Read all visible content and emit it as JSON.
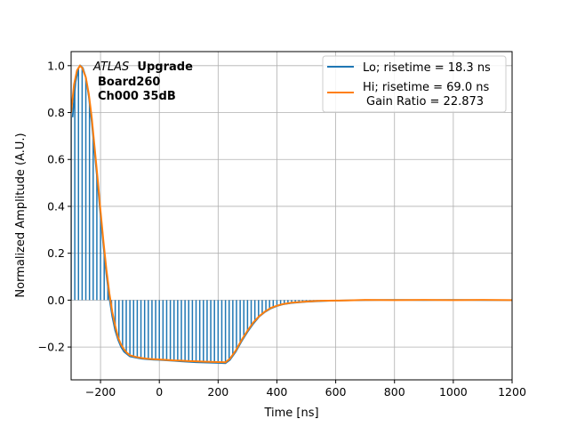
{
  "chart_data": {
    "type": "line",
    "title": "",
    "xlabel": "Time [ns]",
    "ylabel": "Normalized Amplitude (A.U.)",
    "xlim": [
      -300,
      1200
    ],
    "ylim": [
      -0.34,
      1.06
    ],
    "grid": true,
    "xticks": [
      -200,
      0,
      200,
      400,
      600,
      800,
      1000,
      1200
    ],
    "xtick_labels": [
      "−200",
      "0",
      "200",
      "400",
      "600",
      "800",
      "1000",
      "1200"
    ],
    "yticks": [
      -0.2,
      0.0,
      0.2,
      0.4,
      0.6,
      0.8,
      1.0
    ],
    "ytick_labels": [
      "−0.2",
      "0.0",
      "0.2",
      "0.4",
      "0.6",
      "0.8",
      "1.0"
    ],
    "annotation": {
      "experiment": "ATLAS",
      "label": "Upgrade",
      "board": "Board260",
      "channel": "Ch000 35dB"
    },
    "legend_position": "top-right",
    "series": [
      {
        "name": "Lo; risetime = 18.3 ns",
        "color": "#1f77b4",
        "style": "stems+line",
        "sample_period_ns": 12.5,
        "x": [
          -295,
          -285,
          -275,
          -268,
          -260,
          -250,
          -240,
          -230,
          -220,
          -210,
          -200,
          -190,
          -180,
          -170,
          -160,
          -150,
          -140,
          -130,
          -120,
          -110,
          -100,
          -80,
          -60,
          -40,
          -20,
          0,
          25,
          50,
          75,
          100,
          125,
          150,
          175,
          200,
          225,
          240,
          260,
          280,
          300,
          320,
          340,
          360,
          380,
          400,
          420,
          450,
          500,
          550,
          600,
          650,
          700,
          800,
          900,
          1000,
          1100,
          1200
        ],
        "y": [
          0.78,
          0.93,
          0.99,
          1.0,
          0.99,
          0.95,
          0.87,
          0.76,
          0.63,
          0.5,
          0.36,
          0.23,
          0.11,
          0.01,
          -0.07,
          -0.13,
          -0.17,
          -0.2,
          -0.22,
          -0.23,
          -0.24,
          -0.245,
          -0.25,
          -0.252,
          -0.254,
          -0.255,
          -0.257,
          -0.259,
          -0.261,
          -0.263,
          -0.265,
          -0.266,
          -0.267,
          -0.268,
          -0.269,
          -0.255,
          -0.22,
          -0.175,
          -0.135,
          -0.1,
          -0.07,
          -0.05,
          -0.035,
          -0.025,
          -0.018,
          -0.012,
          -0.007,
          -0.004,
          -0.002,
          -0.001,
          0.0,
          0.001,
          0.0,
          0.001,
          0.0,
          0.0
        ]
      },
      {
        "name": "Hi; risetime = 69.0 ns",
        "name_line2": "Gain Ratio = 22.873",
        "color": "#ff7f0e",
        "style": "line",
        "x": [
          -300,
          -290,
          -280,
          -270,
          -262,
          -250,
          -240,
          -230,
          -220,
          -210,
          -200,
          -190,
          -180,
          -170,
          -160,
          -150,
          -140,
          -130,
          -120,
          -110,
          -100,
          -80,
          -60,
          -40,
          -20,
          0,
          25,
          50,
          75,
          100,
          125,
          150,
          175,
          200,
          225,
          240,
          260,
          280,
          300,
          320,
          340,
          360,
          380,
          400,
          420,
          450,
          500,
          550,
          600,
          650,
          700,
          800,
          900,
          1000,
          1100,
          1200
        ],
        "y": [
          0.8,
          0.92,
          0.98,
          1.0,
          0.99,
          0.95,
          0.88,
          0.78,
          0.65,
          0.52,
          0.38,
          0.25,
          0.13,
          0.03,
          -0.05,
          -0.11,
          -0.16,
          -0.19,
          -0.21,
          -0.225,
          -0.235,
          -0.242,
          -0.247,
          -0.25,
          -0.252,
          -0.253,
          -0.255,
          -0.257,
          -0.258,
          -0.26,
          -0.261,
          -0.262,
          -0.263,
          -0.264,
          -0.265,
          -0.25,
          -0.215,
          -0.17,
          -0.13,
          -0.095,
          -0.068,
          -0.048,
          -0.033,
          -0.024,
          -0.017,
          -0.011,
          -0.006,
          -0.003,
          -0.002,
          -0.001,
          0.001,
          0.0,
          0.001,
          0.0,
          0.001,
          0.0
        ]
      }
    ]
  }
}
